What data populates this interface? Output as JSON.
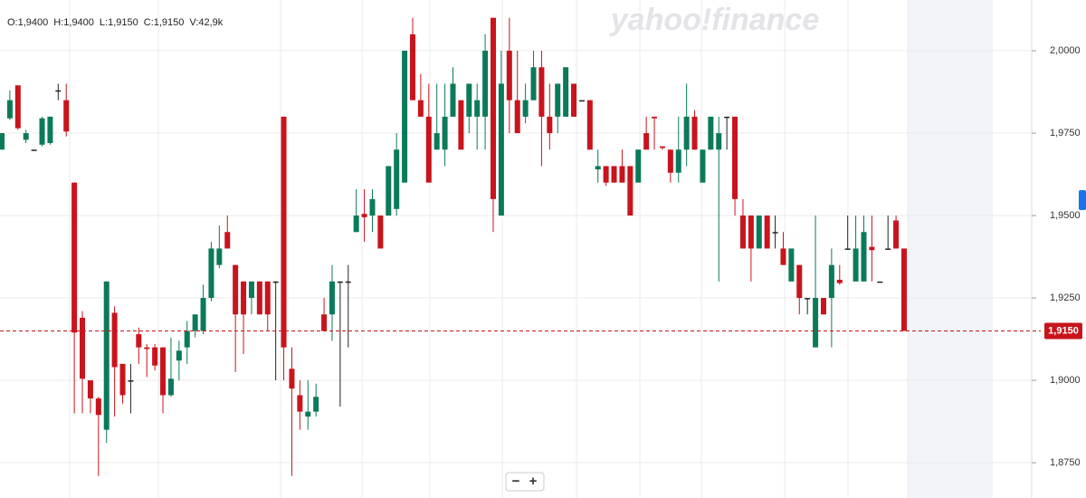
{
  "chart_data": {
    "type": "candlestick",
    "legend_items": [
      "O:1,9400",
      "H:1,9400",
      "L:1,9150",
      "C:1,9150",
      "V:42,9k"
    ],
    "watermark": "yahoo!finance",
    "zoom_controls": [
      "−",
      "+"
    ],
    "up_color": "#0b7a5a",
    "down_color": "#c8141c",
    "flat_color": "#222222",
    "last_price": {
      "value": 1.915,
      "label": "1,9150"
    },
    "ylim": [
      1.8643,
      2.0154
    ],
    "yticks": [
      {
        "value": 1.875,
        "label": "1,8750"
      },
      {
        "value": 1.9,
        "label": "1,9000"
      },
      {
        "value": 1.925,
        "label": "1,9250"
      },
      {
        "value": 1.95,
        "label": "1,9500"
      },
      {
        "value": 1.975,
        "label": "1,9750"
      },
      {
        "value": 2.0,
        "label": "2,0000"
      }
    ],
    "grid": true,
    "open": [
      1.97,
      1.9795,
      1.9895,
      1.973,
      1.97,
      1.9715,
      1.972,
      1.988,
      1.985,
      1.96,
      1.919,
      1.9,
      1.8945,
      1.885,
      1.9205,
      1.905,
      1.9,
      1.914,
      1.91,
      1.91,
      1.91,
      1.8955,
      1.906,
      1.91,
      1.915,
      1.915,
      1.925,
      1.935,
      1.945,
      1.935,
      1.93,
      1.925,
      1.93,
      1.93,
      1.93,
      1.98,
      1.9035,
      1.8955,
      1.889,
      1.8905,
      1.92,
      1.92,
      1.93,
      1.93,
      1.945,
      1.9505,
      1.95,
      1.95,
      1.95,
      1.952,
      1.96,
      2.005,
      1.985,
      1.98,
      1.97,
      1.97,
      1.98,
      1.985,
      1.98,
      1.98,
      1.98,
      2.01,
      1.95,
      2.0,
      1.985,
      1.98,
      1.985,
      1.995,
      1.98,
      1.98,
      1.98,
      1.99,
      1.985,
      1.985,
      1.964,
      1.965,
      1.965,
      1.965,
      1.965,
      1.96,
      1.975,
      1.98,
      1.971,
      1.97,
      1.963,
      1.97,
      1.98,
      1.96,
      1.97,
      1.97,
      1.98,
      1.98,
      1.95,
      1.95,
      1.94,
      1.95,
      1.945,
      1.94,
      1.93,
      1.935,
      1.925,
      1.91,
      1.925,
      1.925,
      1.9305,
      1.94,
      1.93,
      1.93,
      1.9405,
      1.93,
      1.94,
      1.9485,
      1.94
    ],
    "high": [
      1.975,
      1.988,
      1.9895,
      1.976,
      1.97,
      1.98,
      1.98,
      1.99,
      1.99,
      1.96,
      1.921,
      1.9,
      1.895,
      1.93,
      1.9225,
      1.905,
      1.905,
      1.916,
      1.911,
      1.911,
      1.91,
      1.913,
      1.912,
      1.918,
      1.92,
      1.929,
      1.942,
      1.947,
      1.95,
      1.935,
      1.93,
      1.93,
      1.93,
      1.93,
      1.93,
      1.98,
      1.91,
      1.9,
      1.9,
      1.899,
      1.925,
      1.935,
      1.93,
      1.935,
      1.958,
      1.958,
      1.958,
      1.95,
      1.965,
      1.975,
      2.0,
      2.01,
      1.993,
      1.99,
      1.99,
      1.99,
      1.995,
      1.985,
      1.99,
      1.99,
      2.005,
      2.01,
      2.0,
      2.01,
      2.0,
      1.99,
      2.0,
      2.0,
      1.99,
      1.99,
      1.995,
      1.99,
      1.985,
      1.985,
      1.97,
      1.965,
      1.965,
      1.97,
      1.965,
      1.97,
      1.98,
      1.98,
      1.971,
      1.97,
      1.98,
      1.99,
      1.982,
      1.97,
      1.98,
      1.98,
      1.98,
      1.98,
      1.955,
      1.95,
      1.95,
      1.95,
      1.95,
      1.945,
      1.94,
      1.935,
      1.925,
      1.95,
      1.925,
      1.94,
      1.935,
      1.95,
      1.95,
      1.95,
      1.95,
      1.93,
      1.95,
      1.95,
      1.94
    ],
    "low": [
      1.97,
      1.979,
      1.976,
      1.972,
      1.97,
      1.971,
      1.9715,
      1.985,
      1.974,
      1.89,
      1.89,
      1.89,
      1.871,
      1.881,
      1.889,
      1.893,
      1.89,
      1.905,
      1.901,
      1.903,
      1.89,
      1.895,
      1.9,
      1.905,
      1.913,
      1.914,
      1.924,
      1.934,
      1.94,
      1.9025,
      1.908,
      1.92,
      1.92,
      1.915,
      1.9,
      1.9,
      1.871,
      1.885,
      1.885,
      1.889,
      1.915,
      1.912,
      1.892,
      1.91,
      1.945,
      1.942,
      1.945,
      1.94,
      1.95,
      1.95,
      1.96,
      1.985,
      1.98,
      1.96,
      1.97,
      1.965,
      1.98,
      1.97,
      1.975,
      1.97,
      1.97,
      1.945,
      1.95,
      1.975,
      1.975,
      1.978,
      1.985,
      1.965,
      1.97,
      1.975,
      1.98,
      1.98,
      1.985,
      1.97,
      1.96,
      1.959,
      1.96,
      1.96,
      1.95,
      1.96,
      1.97,
      1.97,
      1.97,
      1.96,
      1.96,
      1.965,
      1.97,
      1.96,
      1.97,
      1.93,
      1.97,
      1.95,
      1.94,
      1.93,
      1.94,
      1.94,
      1.94,
      1.935,
      1.93,
      1.92,
      1.92,
      1.91,
      1.92,
      1.91,
      1.929,
      1.94,
      1.93,
      1.93,
      1.93,
      1.93,
      1.94,
      1.94,
      1.915
    ],
    "close": [
      1.975,
      1.985,
      1.9765,
      1.975,
      1.97,
      1.9795,
      1.98,
      1.988,
      1.9755,
      1.9145,
      1.9005,
      1.8945,
      1.8895,
      1.93,
      1.904,
      1.8955,
      1.9,
      1.91,
      1.9095,
      1.9045,
      1.8955,
      1.9005,
      1.909,
      1.915,
      1.92,
      1.925,
      1.94,
      1.94,
      1.94,
      1.92,
      1.92,
      1.93,
      1.92,
      1.92,
      1.93,
      1.91,
      1.8975,
      1.8905,
      1.8905,
      1.895,
      1.915,
      1.93,
      1.93,
      1.93,
      1.95,
      1.9495,
      1.955,
      1.94,
      1.965,
      1.97,
      2.0,
      1.985,
      1.98,
      1.96,
      1.975,
      1.98,
      1.99,
      1.97,
      1.99,
      1.985,
      2.0,
      1.955,
      1.99,
      1.985,
      1.975,
      1.985,
      1.995,
      1.98,
      1.975,
      1.99,
      1.995,
      1.98,
      1.985,
      1.97,
      1.965,
      1.96,
      1.96,
      1.96,
      1.95,
      1.97,
      1.97,
      1.9795,
      1.9705,
      1.963,
      1.97,
      1.98,
      1.97,
      1.97,
      1.98,
      1.975,
      1.98,
      1.955,
      1.94,
      1.94,
      1.95,
      1.94,
      1.945,
      1.935,
      1.94,
      1.925,
      1.925,
      1.925,
      1.92,
      1.935,
      1.9295,
      1.94,
      1.94,
      1.945,
      1.9395,
      1.93,
      1.94,
      1.94,
      1.915
    ]
  }
}
